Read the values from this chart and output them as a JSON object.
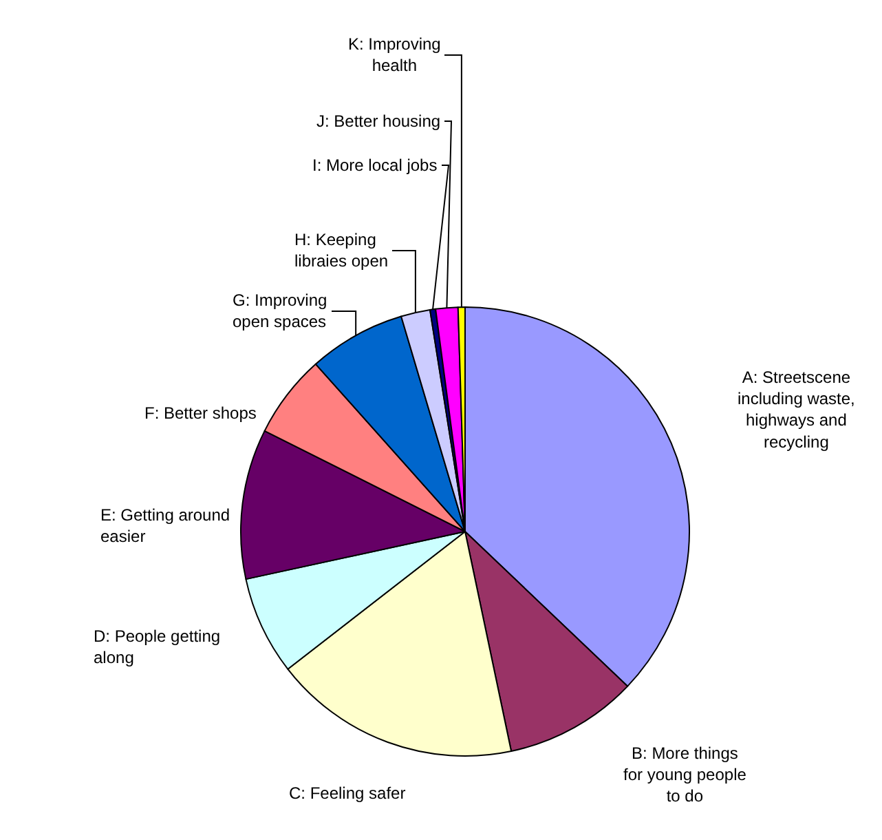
{
  "chart_data": {
    "type": "pie",
    "categories": [
      "A: Streetscene including waste, highways and recycling",
      "B: More things for young people to do",
      "C: Feeling safer",
      "D: People getting along",
      "E: Getting around easier",
      "F: Better shops",
      "G: Improving open spaces",
      "H: Keeping libraies open",
      "I: More local jobs",
      "J: Better housing",
      "K: Improving health"
    ],
    "values": [
      37.1,
      9.6,
      17.8,
      7.1,
      10.8,
      6.0,
      7.0,
      2.1,
      0.4,
      1.6,
      0.5
    ],
    "colors": [
      "#9999ff",
      "#993366",
      "#ffffcc",
      "#ccffff",
      "#660066",
      "#ff8080",
      "#0066cc",
      "#ccccff",
      "#000080",
      "#ff00ff",
      "#ffff00"
    ],
    "legend": false
  }
}
